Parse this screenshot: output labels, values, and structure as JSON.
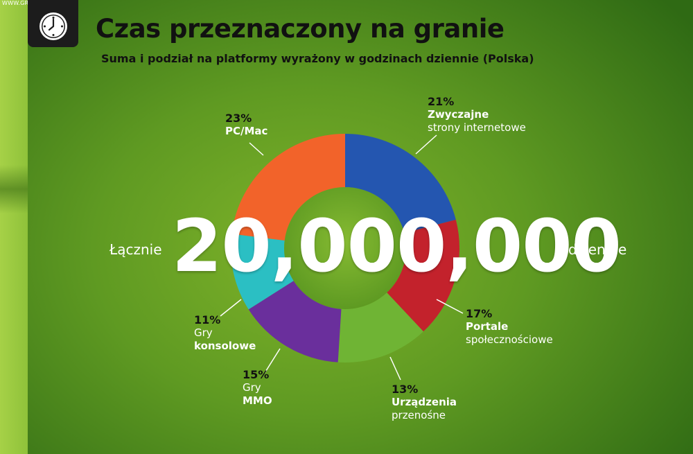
{
  "watermark": "WWW.GRY-ONLINE.PL",
  "title": "Czas przeznaczony na granie",
  "subtitle": "Suma i podział na platformy wyrażony w godzinach dziennie (Polska)",
  "total": {
    "prefix": "Łącznie",
    "value": "20,000,000",
    "suffix": "dziennie"
  },
  "colors": {
    "blue": "#2456b0",
    "red": "#c3222c",
    "green": "#6fb434",
    "purple": "#6a2f9c",
    "cyan": "#2bbfc3",
    "orange": "#f2632a"
  },
  "chart_data": {
    "type": "pie",
    "donut": true,
    "total": 20000000,
    "slices": [
      {
        "pct": "21%",
        "value": 21,
        "line1": "Zwyczajne",
        "line2": "strony internetowe",
        "bold_line": 1,
        "color": "#2456b0"
      },
      {
        "pct": "17%",
        "value": 17,
        "line1": "Portale",
        "line2": "społecznościowe",
        "bold_line": 1,
        "color": "#c3222c"
      },
      {
        "pct": "13%",
        "value": 13,
        "line1": "Urządzenia",
        "line2": "przenośne",
        "bold_line": 1,
        "color": "#6fb434"
      },
      {
        "pct": "15%",
        "value": 15,
        "line1": "Gry",
        "line2": "MMO",
        "bold_line": 2,
        "color": "#6a2f9c"
      },
      {
        "pct": "11%",
        "value": 11,
        "line1": "Gry",
        "line2": "konsolowe",
        "bold_line": 2,
        "color": "#2bbfc3"
      },
      {
        "pct": "23%",
        "value": 23,
        "line1": "PC/Mac",
        "line2": "",
        "bold_line": 1,
        "color": "#f2632a"
      }
    ]
  }
}
